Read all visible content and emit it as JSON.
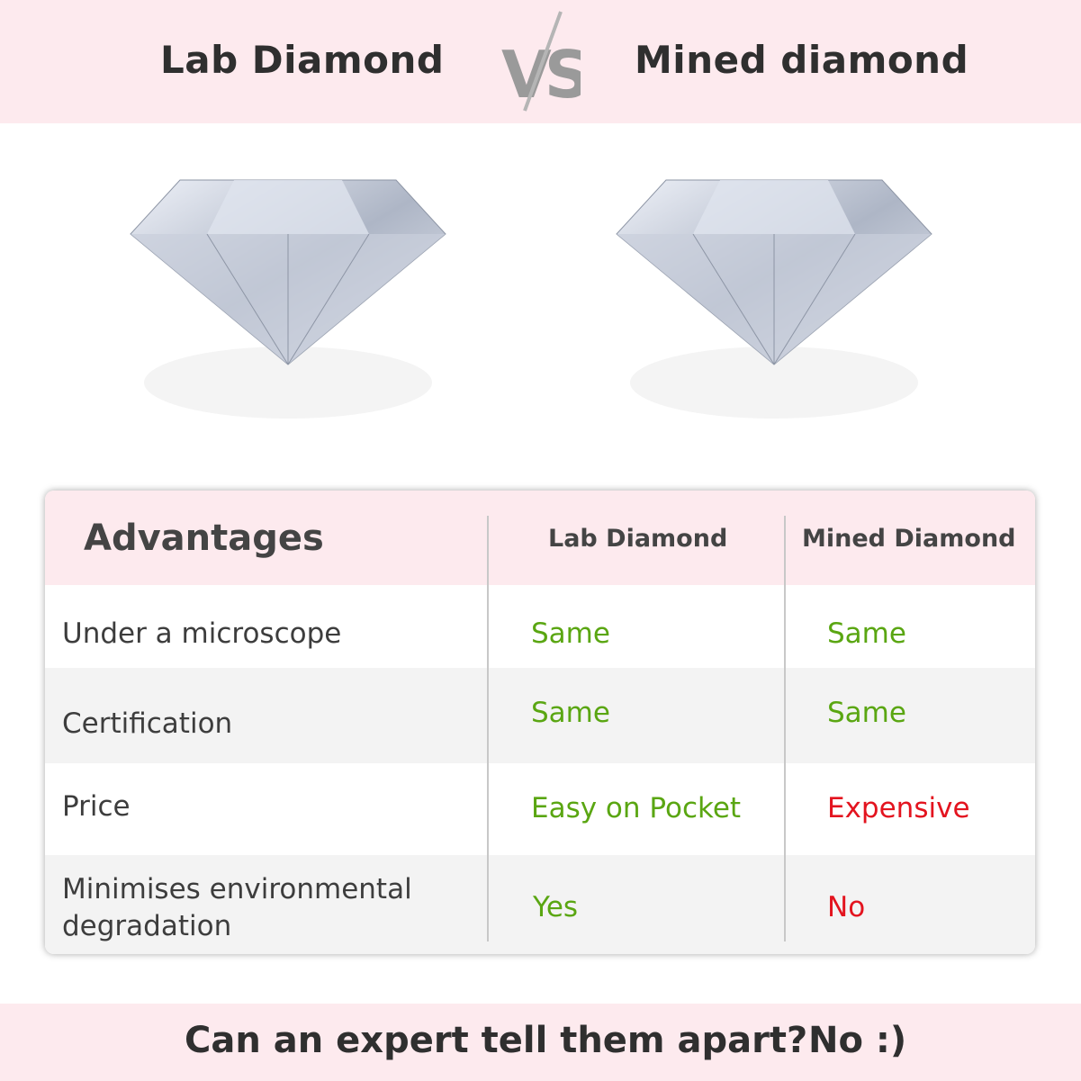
{
  "header": {
    "left_title": "Lab Diamond",
    "vs": "VS",
    "right_title": "Mined diamond"
  },
  "colors": {
    "band": "#fdeaee",
    "positive": "#5aa612",
    "negative": "#e3141f",
    "alt_row": "#f3f3f3"
  },
  "table": {
    "headers": [
      "Advantages",
      "Lab Diamond",
      "Mined Diamond"
    ],
    "rows": [
      {
        "label": "Under a microscope",
        "lab": "Same",
        "mined": "Same"
      },
      {
        "label": "Certification",
        "lab": "Same",
        "mined": "Same"
      },
      {
        "label": "Price",
        "lab": "Easy on Pocket",
        "mined": "Expensive"
      },
      {
        "label": "Minimises environmental degradation",
        "lab": "Yes",
        "mined": "No"
      }
    ]
  },
  "footer": {
    "question": "Can an expert tell them apart?",
    "answer": "No :)"
  }
}
